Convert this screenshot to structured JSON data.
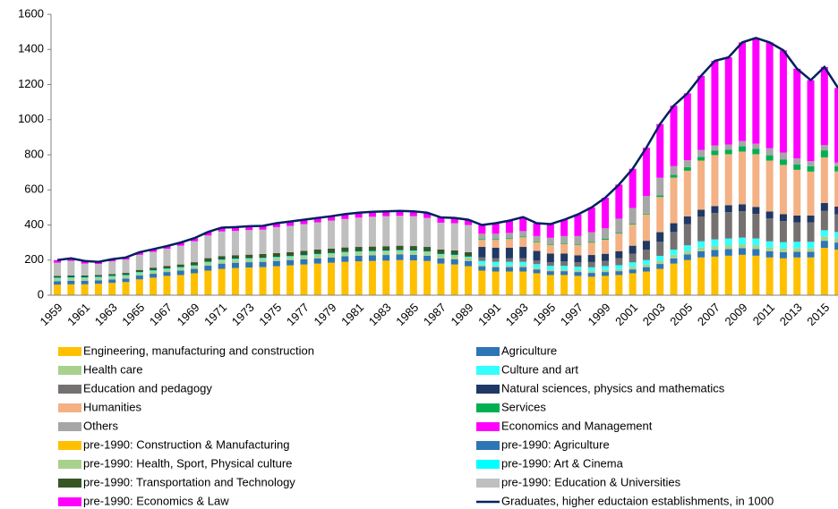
{
  "chart_data": {
    "type": "bar",
    "stacked": true,
    "categories": [
      "1959",
      null,
      "1961",
      null,
      "1963",
      null,
      "1965",
      null,
      "1967",
      null,
      "1969",
      null,
      "1971",
      null,
      "1973",
      null,
      "1975",
      null,
      "1977",
      null,
      "1979",
      null,
      "1981",
      null,
      "1983",
      null,
      "1985",
      null,
      "1987",
      null,
      "1989",
      null,
      "1991",
      null,
      "1993",
      null,
      "1995",
      null,
      "1997",
      null,
      "1999",
      null,
      "2001",
      null,
      "2003",
      null,
      "2005",
      null,
      "2007",
      null,
      "2009",
      null,
      "2011",
      null,
      "2013",
      null,
      "2015",
      null
    ],
    "ylim": [
      0,
      1600
    ],
    "yticks": [
      0,
      200,
      400,
      600,
      800,
      1000,
      1200,
      1400,
      1600
    ],
    "series": [
      {
        "name": "Engineering, manufacturing and construction",
        "color": "#FFC000",
        "values": [
          null,
          null,
          null,
          null,
          null,
          null,
          null,
          null,
          null,
          null,
          null,
          null,
          null,
          null,
          null,
          null,
          null,
          null,
          null,
          null,
          null,
          null,
          null,
          null,
          null,
          null,
          null,
          null,
          null,
          null,
          null,
          140,
          135,
          135,
          135,
          125,
          115,
          115,
          110,
          105,
          110,
          115,
          125,
          135,
          150,
          180,
          200,
          215,
          220,
          225,
          230,
          225,
          215,
          210,
          215,
          215,
          270,
          260
        ]
      },
      {
        "name": "Agriculture",
        "color": "#2E75B6",
        "values": [
          null,
          null,
          null,
          null,
          null,
          null,
          null,
          null,
          null,
          null,
          null,
          null,
          null,
          null,
          null,
          null,
          null,
          null,
          null,
          null,
          null,
          null,
          null,
          null,
          null,
          null,
          null,
          null,
          null,
          null,
          null,
          25,
          25,
          25,
          25,
          22,
          22,
          22,
          22,
          22,
          22,
          22,
          22,
          25,
          28,
          30,
          32,
          35,
          38,
          38,
          38,
          38,
          35,
          35,
          32,
          32,
          40,
          40
        ]
      },
      {
        "name": "Health care",
        "color": "#A9D18E",
        "values": [
          null,
          null,
          null,
          null,
          null,
          null,
          null,
          null,
          null,
          null,
          null,
          null,
          null,
          null,
          null,
          null,
          null,
          null,
          null,
          null,
          null,
          null,
          null,
          null,
          null,
          null,
          null,
          null,
          null,
          null,
          null,
          10,
          10,
          10,
          10,
          10,
          10,
          10,
          10,
          12,
          12,
          12,
          15,
          15,
          18,
          20,
          20,
          22,
          22,
          22,
          22,
          22,
          22,
          22,
          22,
          22,
          25,
          25
        ]
      },
      {
        "name": "Culture and art",
        "color": "#33FFFF",
        "values": [
          null,
          null,
          null,
          null,
          null,
          null,
          null,
          null,
          null,
          null,
          null,
          null,
          null,
          null,
          null,
          null,
          null,
          null,
          null,
          null,
          null,
          null,
          null,
          null,
          null,
          null,
          null,
          null,
          null,
          null,
          null,
          20,
          20,
          20,
          20,
          20,
          20,
          20,
          20,
          20,
          22,
          22,
          25,
          25,
          28,
          30,
          32,
          35,
          38,
          38,
          38,
          38,
          35,
          35,
          35,
          35,
          35,
          35
        ]
      },
      {
        "name": "Education and pedagogy",
        "color": "#767171",
        "values": [
          null,
          null,
          null,
          null,
          null,
          null,
          null,
          null,
          null,
          null,
          null,
          null,
          null,
          null,
          null,
          null,
          null,
          null,
          null,
          null,
          null,
          null,
          null,
          null,
          null,
          null,
          null,
          null,
          null,
          null,
          null,
          20,
          20,
          20,
          20,
          20,
          20,
          25,
          25,
          30,
          30,
          40,
          50,
          60,
          80,
          100,
          120,
          140,
          150,
          150,
          150,
          140,
          130,
          120,
          110,
          110,
          110,
          100
        ]
      },
      {
        "name": "Natural sciences, physics and mathematics",
        "color": "#203864",
        "values": [
          null,
          null,
          null,
          null,
          null,
          null,
          null,
          null,
          null,
          null,
          null,
          null,
          null,
          null,
          null,
          null,
          null,
          null,
          null,
          null,
          null,
          null,
          null,
          null,
          null,
          null,
          null,
          null,
          null,
          null,
          null,
          60,
          60,
          60,
          65,
          55,
          50,
          45,
          40,
          40,
          40,
          40,
          45,
          50,
          55,
          50,
          45,
          40,
          40,
          40,
          40,
          40,
          40,
          40,
          40,
          40,
          45,
          45
        ]
      },
      {
        "name": "Humanities",
        "color": "#F4B183",
        "values": [
          null,
          null,
          null,
          null,
          null,
          null,
          null,
          null,
          null,
          null,
          null,
          null,
          null,
          null,
          null,
          null,
          null,
          null,
          null,
          null,
          null,
          null,
          null,
          null,
          null,
          null,
          null,
          null,
          null,
          null,
          null,
          40,
          45,
          50,
          55,
          50,
          50,
          55,
          60,
          70,
          80,
          100,
          120,
          150,
          200,
          260,
          260,
          280,
          290,
          290,
          300,
          300,
          290,
          280,
          260,
          250,
          260,
          200
        ]
      },
      {
        "name": "Services",
        "color": "#00B050",
        "values": [
          null,
          null,
          null,
          null,
          null,
          null,
          null,
          null,
          null,
          null,
          null,
          null,
          null,
          null,
          null,
          null,
          null,
          null,
          null,
          null,
          null,
          null,
          null,
          null,
          null,
          null,
          null,
          null,
          null,
          null,
          null,
          5,
          5,
          5,
          5,
          5,
          5,
          5,
          5,
          5,
          5,
          5,
          5,
          5,
          10,
          15,
          20,
          20,
          25,
          25,
          30,
          30,
          30,
          30,
          30,
          30,
          40,
          30
        ]
      },
      {
        "name": "Others",
        "color": "#A6A6A6",
        "values": [
          null,
          null,
          null,
          null,
          null,
          null,
          null,
          null,
          null,
          null,
          null,
          null,
          null,
          null,
          null,
          null,
          null,
          null,
          null,
          null,
          null,
          null,
          null,
          null,
          null,
          null,
          null,
          null,
          null,
          null,
          null,
          30,
          30,
          30,
          30,
          30,
          35,
          40,
          45,
          55,
          60,
          80,
          90,
          100,
          100,
          50,
          40,
          40,
          30,
          30,
          30,
          30,
          40,
          40,
          35,
          30,
          30,
          20
        ]
      },
      {
        "name": "Economics and Management",
        "color": "#FF00FF",
        "values": [
          null,
          null,
          null,
          null,
          null,
          null,
          null,
          null,
          null,
          null,
          null,
          null,
          null,
          null,
          null,
          null,
          null,
          null,
          null,
          null,
          null,
          null,
          null,
          null,
          null,
          null,
          null,
          null,
          null,
          null,
          null,
          50,
          60,
          70,
          80,
          73,
          78,
          93,
          123,
          141,
          174,
          194,
          223,
          275,
          306,
          345,
          381,
          423,
          482,
          497,
          562,
          602,
          603,
          583,
          511,
          461,
          445,
          425
        ]
      },
      {
        "name": "pre-1990: Construction & Manufacturing",
        "color": "#FFC000",
        "values": [
          60,
          62,
          62,
          65,
          70,
          75,
          90,
          100,
          110,
          115,
          125,
          140,
          150,
          155,
          158,
          160,
          165,
          170,
          175,
          180,
          185,
          190,
          193,
          195,
          197,
          200,
          198,
          195,
          180,
          175,
          165,
          null,
          null,
          null,
          null,
          null,
          null,
          null,
          null,
          null,
          null,
          null,
          null,
          null,
          null,
          null,
          null,
          null,
          null,
          null,
          null,
          null,
          null,
          null,
          null,
          null,
          null,
          null
        ]
      },
      {
        "name": "pre-1990: Agriculture",
        "color": "#2E75B6",
        "values": [
          20,
          20,
          20,
          20,
          20,
          20,
          22,
          22,
          22,
          25,
          25,
          28,
          30,
          30,
          30,
          30,
          30,
          30,
          30,
          30,
          30,
          32,
          32,
          32,
          32,
          32,
          32,
          30,
          30,
          30,
          30,
          null,
          null,
          null,
          null,
          null,
          null,
          null,
          null,
          null,
          null,
          null,
          null,
          null,
          null,
          null,
          null,
          null,
          null,
          null,
          null,
          null,
          null,
          null,
          null,
          null,
          null,
          null
        ]
      },
      {
        "name": "pre-1990: Health, Sport, Physical culture",
        "color": "#A9D18E",
        "values": [
          15,
          15,
          15,
          15,
          15,
          15,
          15,
          15,
          15,
          15,
          15,
          18,
          18,
          18,
          18,
          18,
          18,
          18,
          18,
          20,
          20,
          20,
          20,
          20,
          20,
          20,
          20,
          20,
          20,
          20,
          20,
          null,
          null,
          null,
          null,
          null,
          null,
          null,
          null,
          null,
          null,
          null,
          null,
          null,
          null,
          null,
          null,
          null,
          null,
          null,
          null,
          null,
          null,
          null,
          null,
          null,
          null,
          null
        ]
      },
      {
        "name": "pre-1990: Art & Cinema",
        "color": "#00FFFF",
        "values": [
          5,
          5,
          5,
          5,
          5,
          5,
          5,
          5,
          5,
          5,
          5,
          5,
          5,
          5,
          5,
          5,
          5,
          5,
          5,
          5,
          5,
          5,
          5,
          5,
          5,
          5,
          5,
          5,
          5,
          5,
          5,
          null,
          null,
          null,
          null,
          null,
          null,
          null,
          null,
          null,
          null,
          null,
          null,
          null,
          null,
          null,
          null,
          null,
          null,
          null,
          null,
          null,
          null,
          null,
          null,
          null,
          null,
          null
        ]
      },
      {
        "name": "pre-1990: Transportation and Technology",
        "color": "#375623",
        "values": [
          10,
          10,
          10,
          10,
          10,
          12,
          12,
          15,
          15,
          15,
          18,
          20,
          20,
          20,
          20,
          22,
          22,
          22,
          25,
          25,
          25,
          25,
          25,
          25,
          25,
          25,
          25,
          25,
          25,
          25,
          25,
          null,
          null,
          null,
          null,
          null,
          null,
          null,
          null,
          null,
          null,
          null,
          null,
          null,
          null,
          null,
          null,
          null,
          null,
          null,
          null,
          null,
          null,
          null,
          null,
          null,
          null,
          null
        ]
      },
      {
        "name": "pre-1990: Education & Universities",
        "color": "#BFBFBF",
        "values": [
          75,
          83,
          68,
          63,
          73,
          76,
          86,
          90,
          98,
          107,
          119,
          129,
          140,
          138,
          140,
          138,
          148,
          150,
          152,
          155,
          160,
          162,
          167,
          170,
          171,
          170,
          170,
          165,
          153,
          155,
          155,
          null,
          null,
          null,
          null,
          null,
          null,
          null,
          null,
          null,
          null,
          null,
          null,
          null,
          null,
          null,
          null,
          null,
          null,
          null,
          null,
          null,
          null,
          null,
          null,
          null,
          null,
          null
        ]
      },
      {
        "name": "pre-1990: Economics & Law",
        "color": "#FF00FF",
        "values": [
          15,
          15,
          15,
          12,
          12,
          12,
          15,
          15,
          15,
          18,
          18,
          20,
          22,
          22,
          22,
          22,
          22,
          25,
          25,
          25,
          25,
          28,
          28,
          28,
          28,
          28,
          28,
          30,
          30,
          30,
          30,
          null,
          null,
          null,
          null,
          null,
          null,
          null,
          null,
          null,
          null,
          null,
          null,
          null,
          null,
          null,
          null,
          null,
          null,
          null,
          null,
          null,
          null,
          null,
          null,
          null,
          null,
          null
        ]
      },
      {
        "name": "Graduates, higher eductaion establishments, in 1000",
        "color": "#002060",
        "type": "line",
        "values": [
          200,
          210,
          195,
          190,
          205,
          215,
          245,
          262,
          280,
          300,
          325,
          360,
          385,
          388,
          393,
          395,
          410,
          420,
          430,
          440,
          450,
          462,
          470,
          475,
          478,
          480,
          478,
          470,
          443,
          440,
          430,
          400,
          410,
          425,
          445,
          410,
          405,
          430,
          460,
          500,
          555,
          630,
          720,
          840,
          975,
          1080,
          1150,
          1250,
          1335,
          1355,
          1440,
          1465,
          1440,
          1395,
          1290,
          1225,
          1300,
          1180
        ]
      }
    ]
  }
}
